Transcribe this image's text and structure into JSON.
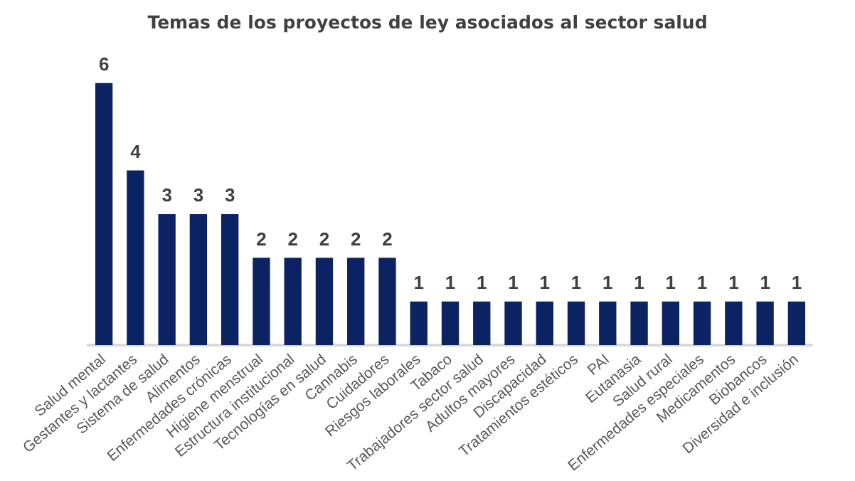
{
  "chart_data": {
    "type": "bar",
    "title": "Temas de los proyectos de ley asociados al sector salud",
    "categories": [
      "Salud mental",
      "Gestantes y lactantes",
      "Sistema de salud",
      "Alimentos",
      "Enfermedades crónicas",
      "Higiene menstrual",
      "Estructura institucional",
      "Tecnologías en salud",
      "Cannabis",
      "Cuidadores",
      "Riesgos laborales",
      "Tabaco",
      "Trabajadores sector salud",
      "Adultos mayores",
      "Discapacidad",
      "Tratamientos estéticos",
      "PAI",
      "Eutanasia",
      "Salud rural",
      "Enfermedades especiales",
      "Medicamentos",
      "Biobancos",
      "Diversidad e inclusión"
    ],
    "values": [
      6,
      4,
      3,
      3,
      3,
      2,
      2,
      2,
      2,
      2,
      1,
      1,
      1,
      1,
      1,
      1,
      1,
      1,
      1,
      1,
      1,
      1,
      1
    ],
    "color": "#0b2263",
    "data_labels": true,
    "grid": false,
    "legend": false
  }
}
